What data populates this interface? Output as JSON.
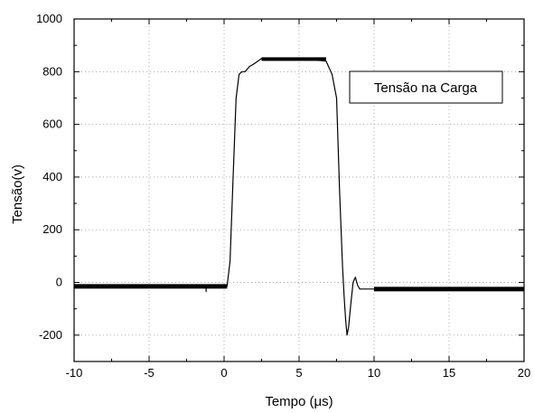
{
  "chart_data": {
    "type": "line",
    "title": "",
    "xlabel": "Tempo (μs)",
    "ylabel": "Tensão(v)",
    "xlim": [
      -10,
      20
    ],
    "ylim": [
      -300,
      1000
    ],
    "xticks": [
      -10,
      -5,
      0,
      5,
      10,
      15,
      20
    ],
    "yticks": [
      -200,
      0,
      200,
      400,
      600,
      800,
      1000
    ],
    "x_tick_labels": [
      "-10",
      "-5",
      "0",
      "5",
      "10",
      "15",
      "20"
    ],
    "y_tick_labels": [
      "-200",
      "0",
      "200",
      "400",
      "600",
      "800",
      "1000"
    ],
    "grid": true,
    "legend_position": "top-right",
    "series": [
      {
        "name": "Tensão na Carga",
        "color": "#000000",
        "x": [
          -10,
          -1.2,
          -1.2,
          -1.2,
          0.2,
          0.4,
          0.6,
          0.8,
          1.0,
          1.2,
          1.4,
          1.7,
          2.0,
          2.5,
          3.0,
          4.0,
          5.0,
          6.0,
          6.8,
          7.2,
          7.5,
          7.7,
          7.9,
          8.0,
          8.1,
          8.2,
          8.3,
          8.45,
          8.6,
          8.75,
          8.9,
          9.05,
          9.2,
          9.5,
          10,
          15,
          20
        ],
        "y": [
          -15,
          -15,
          -35,
          -15,
          -15,
          80,
          400,
          700,
          790,
          800,
          800,
          820,
          830,
          850,
          850,
          850,
          850,
          845,
          840,
          790,
          700,
          350,
          60,
          -50,
          -140,
          -200,
          -170,
          -80,
          0,
          20,
          -10,
          -25,
          -25,
          -25,
          -25,
          -25,
          -25
        ]
      }
    ],
    "legend": {
      "text": "Tensão na Carga"
    }
  }
}
